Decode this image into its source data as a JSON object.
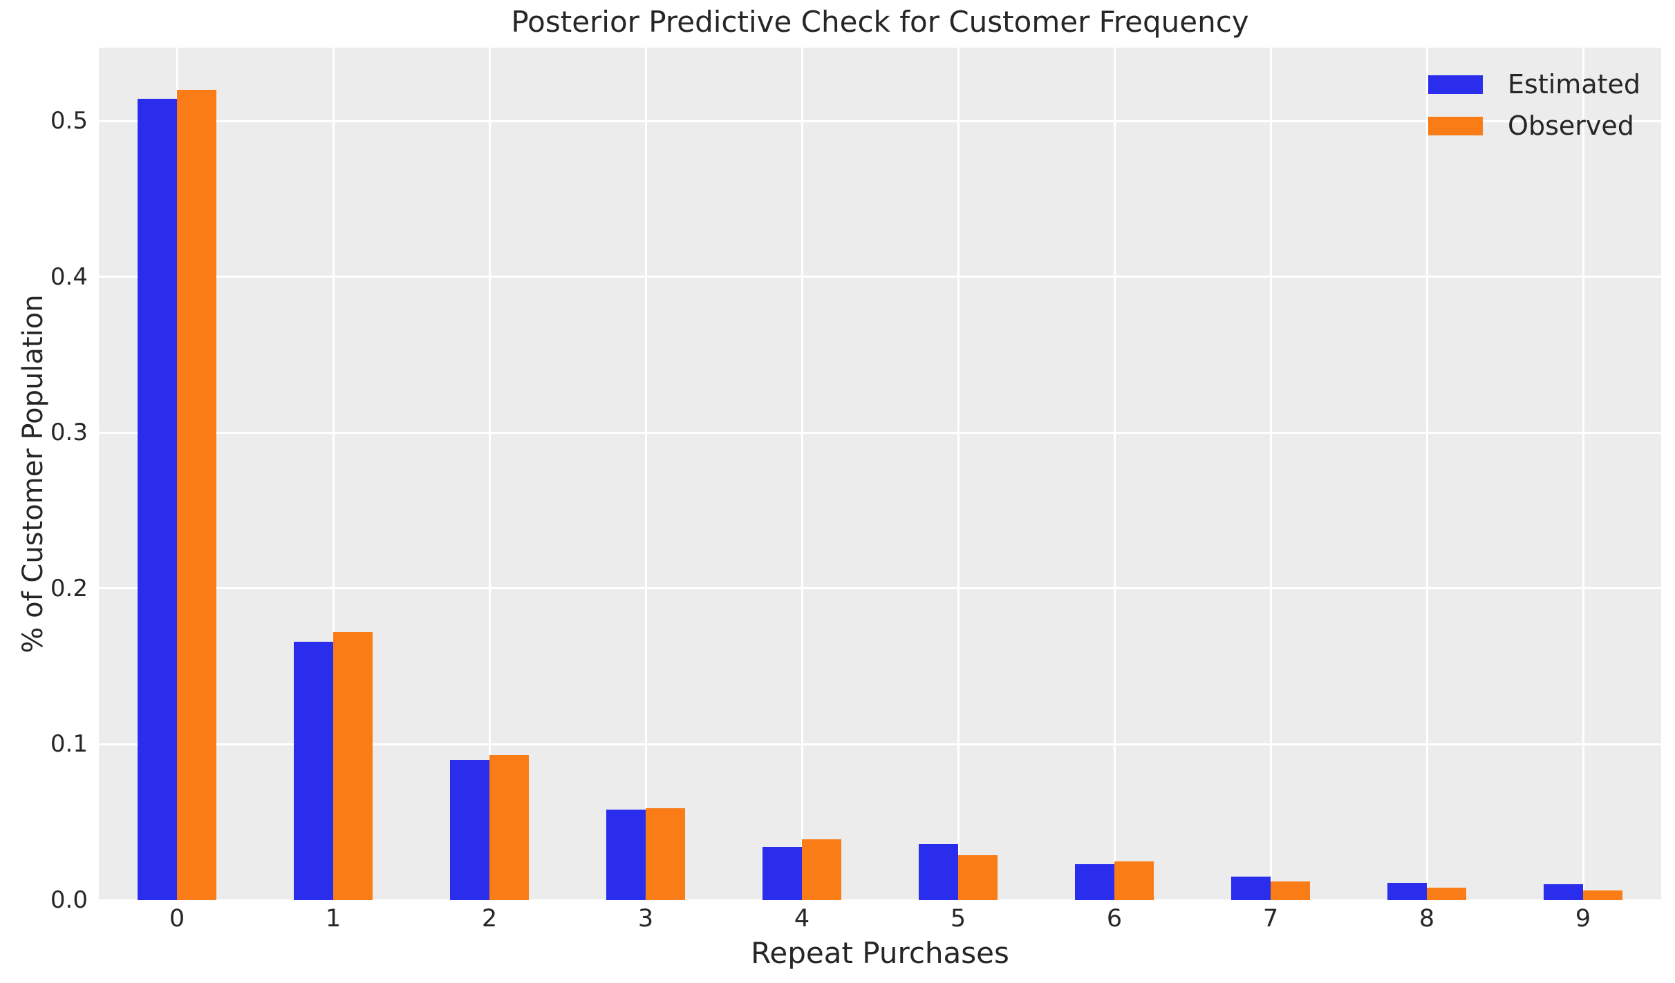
{
  "figure": {
    "background_color": "#ffffff",
    "plot_background_color": "#ececec",
    "grid_color": "#ffffff",
    "text_color": "#262626"
  },
  "legend": {
    "position": "upper right",
    "items": [
      {
        "label": "Estimated",
        "color": "#2a2eec"
      },
      {
        "label": "Observed",
        "color": "#fa7c17"
      }
    ]
  },
  "chart_data": {
    "type": "bar",
    "title": "Posterior Predictive Check for Customer Frequency",
    "xlabel": "Repeat Purchases",
    "ylabel": "% of Customer Population",
    "categories": [
      "0",
      "1",
      "2",
      "3",
      "4",
      "5",
      "6",
      "7",
      "8",
      "9"
    ],
    "series": [
      {
        "name": "Estimated",
        "color": "#2a2eec",
        "values": [
          0.514,
          0.166,
          0.09,
          0.058,
          0.034,
          0.036,
          0.023,
          0.015,
          0.011,
          0.01
        ]
      },
      {
        "name": "Observed",
        "color": "#fa7c17",
        "values": [
          0.52,
          0.172,
          0.093,
          0.059,
          0.039,
          0.029,
          0.025,
          0.012,
          0.008,
          0.006
        ]
      }
    ],
    "ylim": [
      0,
      0.547
    ],
    "yticks": [
      0.0,
      0.1,
      0.2,
      0.3,
      0.4,
      0.5
    ],
    "ytick_labels": [
      "0.0",
      "0.1",
      "0.2",
      "0.3",
      "0.4",
      "0.5"
    ],
    "grid": true,
    "legend_position": "upper right"
  }
}
